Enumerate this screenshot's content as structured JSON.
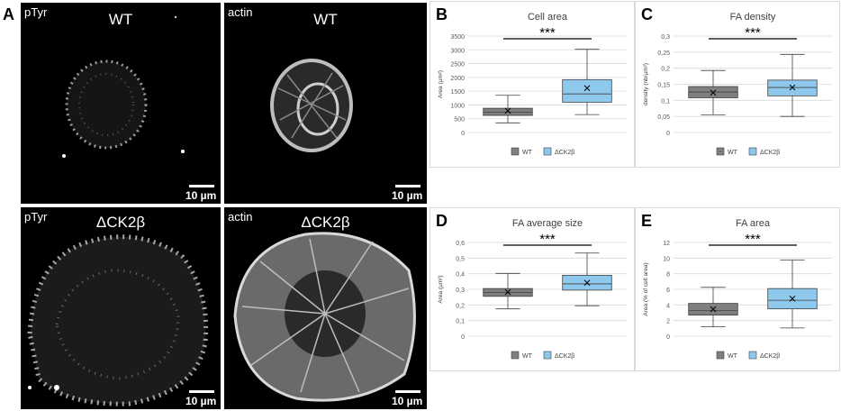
{
  "figure": {
    "panel_letters": [
      "A",
      "B",
      "C",
      "D",
      "E"
    ],
    "microscopy": [
      {
        "stain": "pTyr",
        "condition": "WT",
        "scale": "10 µm",
        "image": "pTyr-stained WT cell, small round cell with punctate dots at periphery"
      },
      {
        "stain": "actin",
        "condition": "WT",
        "scale": "10 µm",
        "image": "actin-stained WT cell with stress fibers"
      },
      {
        "stain": "pTyr",
        "condition": "ΔCK2β",
        "scale": "10 µm",
        "image": "pTyr-stained ΔCK2β cell, large spread cell with many elongated focal adhesions"
      },
      {
        "stain": "actin",
        "condition": "ΔCK2β",
        "scale": "10 µm",
        "image": "actin-stained ΔCK2β cell, large spread cell with radial fibers"
      }
    ]
  },
  "colors": {
    "wt": "#7f7f7f",
    "ck2b": "#8ec8ec",
    "box_stroke": "#404040",
    "grid": "#d9d9d9"
  },
  "chart_data": [
    {
      "type": "box",
      "letter": "B",
      "title": "Cell area",
      "ylabel": "Area (µm²)",
      "yticks": [
        "0",
        "500",
        "1000",
        "1500",
        "2000",
        "2500",
        "3000",
        "3500"
      ],
      "ylim": [
        0,
        3500
      ],
      "significance": "***",
      "legend": [
        "WT",
        "ΔCK2β"
      ],
      "series": [
        {
          "name": "WT",
          "min": 350,
          "q1": 620,
          "median": 740,
          "q3": 880,
          "max": 1350,
          "mean": 790
        },
        {
          "name": "ΔCK2β",
          "min": 650,
          "q1": 1100,
          "median": 1400,
          "q3": 1920,
          "max": 3020,
          "mean": 1610
        }
      ]
    },
    {
      "type": "box",
      "letter": "C",
      "title": "FA density",
      "ylabel": "density (nb/µm²)",
      "yticks": [
        "0",
        "0,05",
        "0,1",
        "0,15",
        "0,2",
        "0,25",
        "0,3"
      ],
      "ylim": [
        0,
        0.3
      ],
      "significance": "***",
      "legend": [
        "WT",
        "ΔCK2β"
      ],
      "series": [
        {
          "name": "WT",
          "min": 0.055,
          "q1": 0.108,
          "median": 0.126,
          "q3": 0.143,
          "max": 0.193,
          "mean": 0.124
        },
        {
          "name": "ΔCK2β",
          "min": 0.05,
          "q1": 0.114,
          "median": 0.14,
          "q3": 0.163,
          "max": 0.243,
          "mean": 0.14
        }
      ]
    },
    {
      "type": "box",
      "letter": "D",
      "title": "FA average size",
      "ylabel": "Area (µm²)",
      "yticks": [
        "0",
        "0,1",
        "0,2",
        "0,3",
        "0,4",
        "0,5",
        "0,6"
      ],
      "ylim": [
        0,
        0.6
      ],
      "significance": "***",
      "legend": [
        "WT",
        "ΔCK2β"
      ],
      "series": [
        {
          "name": "WT",
          "min": 0.175,
          "q1": 0.255,
          "median": 0.28,
          "q3": 0.305,
          "max": 0.402,
          "mean": 0.282
        },
        {
          "name": "ΔCK2β",
          "min": 0.195,
          "q1": 0.295,
          "median": 0.335,
          "q3": 0.39,
          "max": 0.532,
          "mean": 0.342
        }
      ]
    },
    {
      "type": "box",
      "letter": "E",
      "title": "FA area",
      "ylabel": "Area (% of cell area)",
      "yticks": [
        "0",
        "2",
        "4",
        "6",
        "8",
        "10",
        "12"
      ],
      "ylim": [
        0,
        12
      ],
      "significance": "***",
      "legend": [
        "WT",
        "ΔCK2β"
      ],
      "series": [
        {
          "name": "WT",
          "min": 1.2,
          "q1": 2.7,
          "median": 3.3,
          "q3": 4.2,
          "max": 6.25,
          "mean": 3.45
        },
        {
          "name": "ΔCK2β",
          "min": 1.05,
          "q1": 3.5,
          "median": 4.6,
          "q3": 6.1,
          "max": 9.75,
          "mean": 4.8
        }
      ]
    }
  ]
}
